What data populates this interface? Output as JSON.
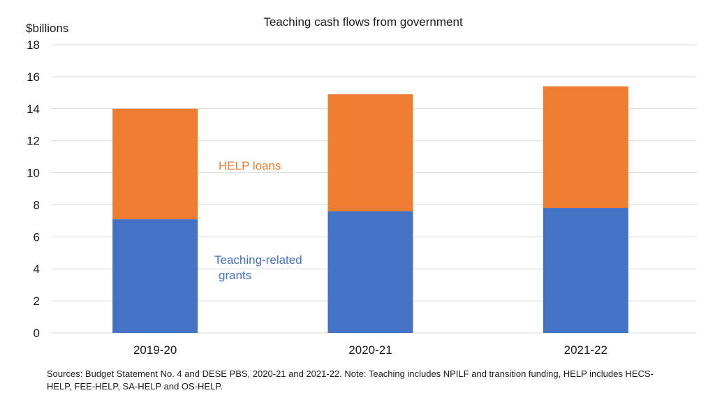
{
  "chart_data": {
    "type": "bar",
    "stacked": true,
    "title": "Teaching cash flows from government",
    "y_unit_label": "$billions",
    "xlabel": "",
    "ylabel": "",
    "ylim": [
      0,
      18
    ],
    "yticks": [
      "0",
      "2",
      "4",
      "6",
      "8",
      "10",
      "12",
      "14",
      "16",
      "18"
    ],
    "grid": true,
    "categories": [
      "2019-20",
      "2020-21",
      "2021-22"
    ],
    "series": [
      {
        "name": "Teaching-related grants",
        "label_lines": [
          "Teaching-related",
          "grants"
        ],
        "color": "#4472c4",
        "values": [
          7.1,
          7.6,
          7.8
        ]
      },
      {
        "name": "HELP loans",
        "label_lines": [
          "HELP loans"
        ],
        "color": "#ed7d31",
        "values": [
          6.9,
          7.3,
          7.6
        ]
      }
    ],
    "footnote": "Sources: Budget Statement No. 4 and DESE PBS, 2020-21 and 2021-22. Note: Teaching includes NPILF and transition funding, HELP includes HECS-HELP, FEE-HELP, SA-HELP and OS-HELP."
  },
  "colors": {
    "grid": "#d9d9d9",
    "text": "#1a1a1a"
  }
}
